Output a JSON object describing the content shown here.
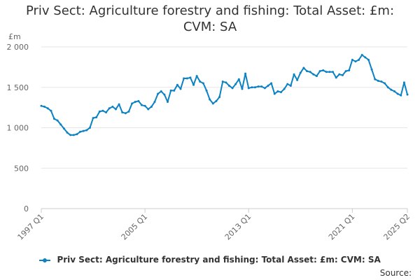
{
  "chart_data": {
    "type": "line",
    "title_lines": [
      "Priv Sect: Agriculture forestry and fishing: Total Asset: £m:",
      "CVM: SA"
    ],
    "unit_label": "£m",
    "ylim": [
      0,
      2000
    ],
    "y_ticks": [
      0,
      500,
      1000,
      1500,
      2000
    ],
    "y_tick_labels": [
      "0",
      "500",
      "1 000",
      "1 500",
      "2 000"
    ],
    "x_tick_labels": [
      "1997 Q1",
      "2005 Q1",
      "2013 Q1",
      "2021 Q1",
      "2025 Q2"
    ],
    "x_tick_indices": [
      0,
      32,
      64,
      96,
      113
    ],
    "grid": true,
    "legend_position": "bottom",
    "series": [
      {
        "name": "Priv Sect: Agriculture forestry and fishing: Total Asset: £m: CVM: SA",
        "color": "#0b82c4",
        "x_start": "1997 Q1",
        "values": [
          1270,
          1260,
          1240,
          1210,
          1110,
          1090,
          1040,
          990,
          940,
          910,
          910,
          920,
          950,
          960,
          970,
          1000,
          1120,
          1130,
          1200,
          1210,
          1190,
          1240,
          1260,
          1230,
          1290,
          1190,
          1180,
          1200,
          1300,
          1320,
          1330,
          1280,
          1270,
          1230,
          1260,
          1320,
          1420,
          1450,
          1410,
          1320,
          1460,
          1460,
          1530,
          1480,
          1610,
          1610,
          1620,
          1530,
          1640,
          1570,
          1550,
          1460,
          1350,
          1300,
          1330,
          1380,
          1570,
          1560,
          1520,
          1490,
          1540,
          1600,
          1480,
          1670,
          1490,
          1500,
          1500,
          1510,
          1510,
          1490,
          1520,
          1550,
          1420,
          1450,
          1440,
          1480,
          1540,
          1520,
          1660,
          1590,
          1680,
          1740,
          1700,
          1690,
          1660,
          1640,
          1700,
          1710,
          1690,
          1690,
          1690,
          1620,
          1660,
          1650,
          1700,
          1710,
          1840,
          1820,
          1840,
          1900,
          1870,
          1840,
          1720,
          1600,
          1580,
          1570,
          1550,
          1500,
          1470,
          1450,
          1420,
          1400,
          1560,
          1410
        ]
      }
    ]
  },
  "legend": {
    "label": "Priv Sect: Agriculture forestry and fishing: Total Asset: £m: CVM: SA"
  },
  "footer": {
    "source_label": "Source:"
  }
}
